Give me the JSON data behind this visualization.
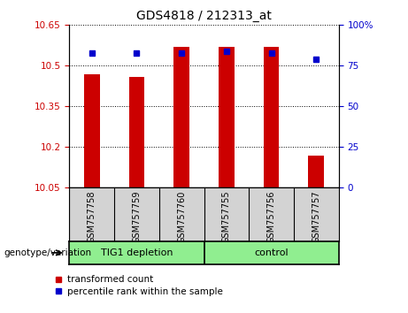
{
  "title": "GDS4818 / 212313_at",
  "samples": [
    "GSM757758",
    "GSM757759",
    "GSM757760",
    "GSM757755",
    "GSM757756",
    "GSM757757"
  ],
  "bar_values": [
    10.47,
    10.46,
    10.57,
    10.57,
    10.57,
    10.17
  ],
  "percentile_values": [
    83,
    83,
    83,
    84,
    83,
    79
  ],
  "bar_color": "#cc0000",
  "marker_color": "#0000cc",
  "ylim_left": [
    10.05,
    10.65
  ],
  "ylim_right": [
    0,
    100
  ],
  "yticks_left": [
    10.05,
    10.2,
    10.35,
    10.5,
    10.65
  ],
  "yticks_left_labels": [
    "10.05",
    "10.2",
    "10.35",
    "10.5",
    "10.65"
  ],
  "yticks_right": [
    0,
    25,
    50,
    75,
    100
  ],
  "yticks_right_labels": [
    "0",
    "25",
    "50",
    "75",
    "100%"
  ],
  "group1_label": "TIG1 depletion",
  "group2_label": "control",
  "group1_indices": [
    0,
    1,
    2
  ],
  "group2_indices": [
    3,
    4,
    5
  ],
  "group_bg_color": "#90EE90",
  "xlabel_area_color": "#d3d3d3",
  "legend_red_label": "transformed count",
  "legend_blue_label": "percentile rank within the sample",
  "genotype_label": "genotype/variation",
  "background_color": "#ffffff",
  "plot_bg_color": "#ffffff",
  "bar_width": 0.35
}
